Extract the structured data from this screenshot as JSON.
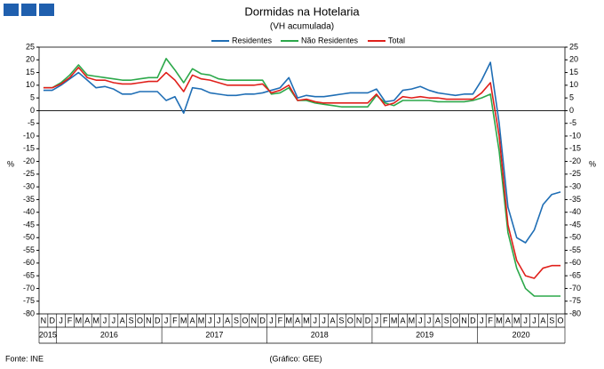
{
  "chart_data": {
    "type": "line",
    "title": "Dormidas na Hotelaria",
    "subtitle": "(VH acumulada)",
    "y_label": "%",
    "source": "Fonte: INE",
    "credit": "(Gráfico: GEE)",
    "categories": [
      "N",
      "D",
      "J",
      "F",
      "M",
      "A",
      "M",
      "J",
      "J",
      "A",
      "S",
      "O",
      "N",
      "D",
      "J",
      "F",
      "M",
      "A",
      "M",
      "J",
      "J",
      "A",
      "S",
      "O",
      "N",
      "D",
      "J",
      "F",
      "M",
      "A",
      "M",
      "J",
      "J",
      "A",
      "S",
      "O",
      "N",
      "D",
      "J",
      "F",
      "M",
      "A",
      "M",
      "J",
      "J",
      "A",
      "S",
      "O",
      "N",
      "D",
      "J",
      "F",
      "M",
      "A",
      "M",
      "J",
      "J",
      "A",
      "S",
      "O"
    ],
    "years": [
      "2015",
      "2016",
      "2017",
      "2018",
      "2019",
      "2020"
    ],
    "ylim": [
      -80,
      25
    ],
    "yticks": [
      -80,
      -75,
      -70,
      -65,
      -60,
      -55,
      -50,
      -45,
      -40,
      -35,
      -30,
      -25,
      -20,
      -15,
      -10,
      -5,
      0,
      5,
      10,
      15,
      20,
      25
    ],
    "series": [
      {
        "name": "Residentes",
        "color": "#1f6eb5",
        "values": [
          8,
          8,
          10,
          12.5,
          15,
          12,
          9,
          9.5,
          8.5,
          6.5,
          6.5,
          7.5,
          7.5,
          7.5,
          4,
          5.5,
          -1,
          9,
          8.5,
          7,
          6.5,
          6,
          6,
          6.5,
          6.5,
          7,
          8,
          9,
          13,
          5,
          6,
          5.5,
          5.5,
          6,
          6.5,
          7,
          7,
          7,
          8.5,
          3.5,
          4,
          8,
          8.5,
          9.5,
          8,
          7,
          6.5,
          6,
          6.5,
          6.5,
          12,
          19,
          -5,
          -38,
          -50,
          -52,
          -47,
          -37,
          -33,
          -32
        ]
      },
      {
        "name": "Não Residentes",
        "color": "#2ca84a",
        "values": [
          9,
          9,
          11,
          14,
          18,
          14,
          13.5,
          13,
          12.5,
          12,
          12,
          12.5,
          13,
          13,
          20.5,
          16,
          11,
          16.5,
          14.5,
          14,
          12.5,
          12,
          12,
          12,
          12,
          12,
          6.5,
          7,
          9,
          4,
          4,
          3,
          2.5,
          2,
          1.5,
          1.5,
          1.5,
          1.5,
          6,
          3,
          2,
          4,
          4,
          4,
          4,
          3.5,
          3.5,
          3.5,
          3.5,
          4,
          5,
          6.5,
          -16,
          -48,
          -62,
          -70,
          -73,
          -73,
          -73,
          -73
        ]
      },
      {
        "name": "Total",
        "color": "#e0201b",
        "values": [
          9,
          9,
          10.5,
          13,
          17,
          13,
          12,
          12,
          11,
          10.5,
          10.5,
          11,
          11.5,
          11.5,
          15,
          12,
          7.5,
          14,
          12.5,
          12,
          11,
          10,
          10,
          10,
          10,
          10.5,
          7,
          8,
          10,
          4,
          4.5,
          3.5,
          3,
          3,
          3,
          3,
          3,
          3,
          6.5,
          2,
          3,
          5.5,
          5,
          5.5,
          5,
          5,
          4.5,
          4.5,
          4.5,
          4.5,
          7,
          11,
          -10,
          -45,
          -59,
          -65,
          -66,
          -62,
          -61,
          -61
        ]
      }
    ]
  }
}
